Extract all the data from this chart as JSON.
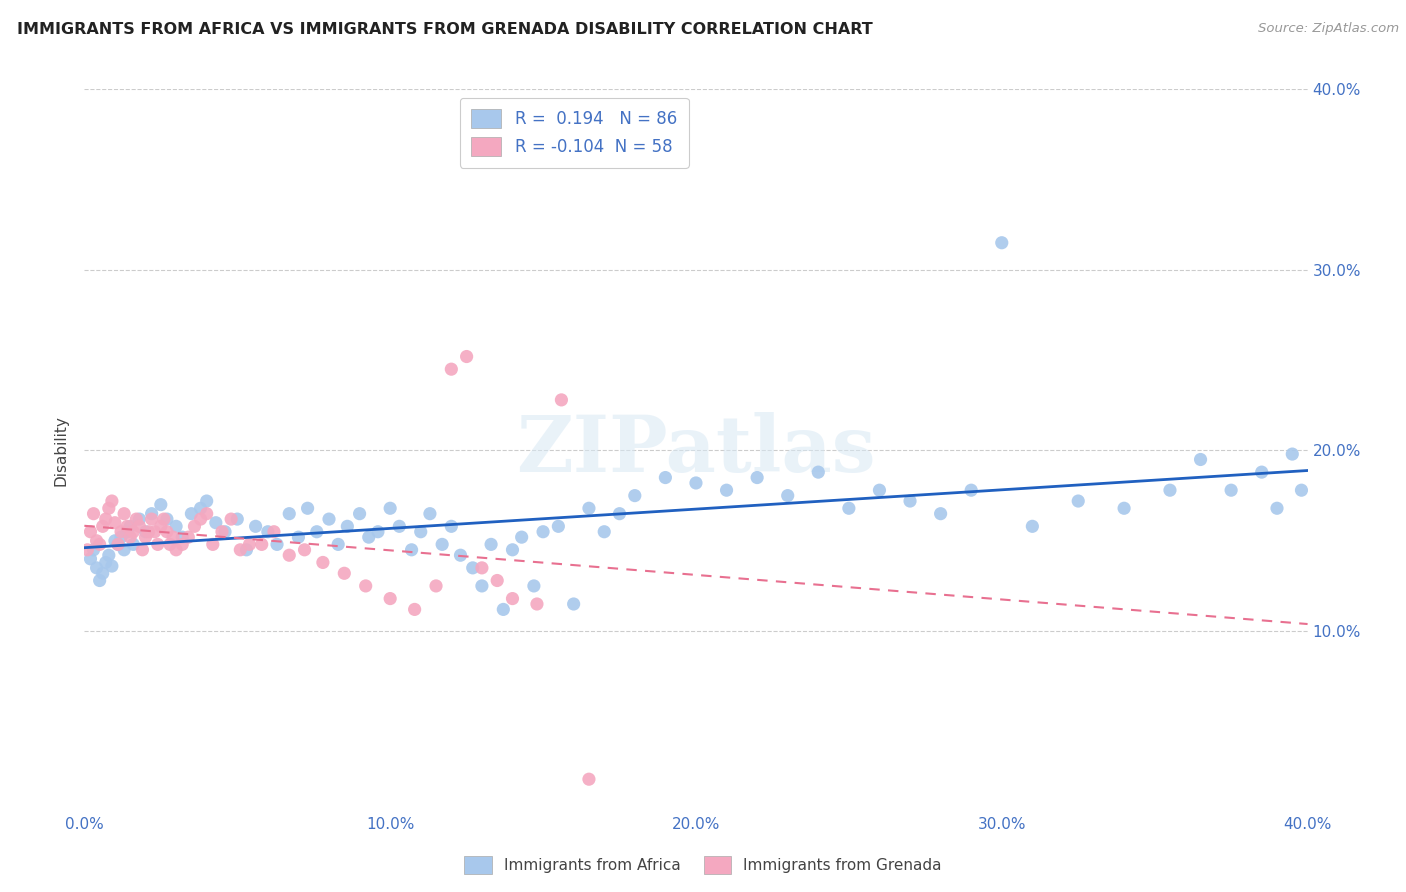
{
  "title": "IMMIGRANTS FROM AFRICA VS IMMIGRANTS FROM GRENADA DISABILITY CORRELATION CHART",
  "source": "Source: ZipAtlas.com",
  "ylabel": "Disability",
  "xlim": [
    0.0,
    0.4
  ],
  "ylim": [
    0.0,
    0.4
  ],
  "xticks": [
    0.0,
    0.1,
    0.2,
    0.3,
    0.4
  ],
  "yticks": [
    0.1,
    0.2,
    0.3,
    0.4
  ],
  "xtick_labels": [
    "0.0%",
    "10.0%",
    "20.0%",
    "30.0%",
    "40.0%"
  ],
  "ytick_labels": [
    "10.0%",
    "20.0%",
    "30.0%",
    "40.0%"
  ],
  "africa_R": 0.194,
  "africa_N": 86,
  "grenada_R": -0.104,
  "grenada_N": 58,
  "africa_color": "#A8C8EC",
  "grenada_color": "#F4A8C0",
  "africa_line_color": "#2060C0",
  "grenada_line_color": "#E87090",
  "watermark": "ZIPatlas",
  "africa_x": [
    0.002,
    0.003,
    0.004,
    0.005,
    0.006,
    0.007,
    0.008,
    0.009,
    0.01,
    0.011,
    0.012,
    0.013,
    0.014,
    0.015,
    0.016,
    0.018,
    0.02,
    0.022,
    0.025,
    0.027,
    0.03,
    0.032,
    0.035,
    0.038,
    0.04,
    0.043,
    0.046,
    0.05,
    0.053,
    0.056,
    0.06,
    0.063,
    0.067,
    0.07,
    0.073,
    0.076,
    0.08,
    0.083,
    0.086,
    0.09,
    0.093,
    0.096,
    0.1,
    0.103,
    0.107,
    0.11,
    0.113,
    0.117,
    0.12,
    0.123,
    0.127,
    0.13,
    0.133,
    0.137,
    0.14,
    0.143,
    0.147,
    0.15,
    0.155,
    0.16,
    0.165,
    0.17,
    0.175,
    0.18,
    0.19,
    0.2,
    0.21,
    0.22,
    0.23,
    0.24,
    0.25,
    0.26,
    0.27,
    0.28,
    0.29,
    0.3,
    0.31,
    0.325,
    0.34,
    0.355,
    0.365,
    0.375,
    0.385,
    0.39,
    0.395,
    0.398
  ],
  "africa_y": [
    0.14,
    0.145,
    0.135,
    0.128,
    0.132,
    0.138,
    0.142,
    0.136,
    0.15,
    0.148,
    0.152,
    0.145,
    0.155,
    0.158,
    0.148,
    0.162,
    0.155,
    0.165,
    0.17,
    0.162,
    0.158,
    0.152,
    0.165,
    0.168,
    0.172,
    0.16,
    0.155,
    0.162,
    0.145,
    0.158,
    0.155,
    0.148,
    0.165,
    0.152,
    0.168,
    0.155,
    0.162,
    0.148,
    0.158,
    0.165,
    0.152,
    0.155,
    0.168,
    0.158,
    0.145,
    0.155,
    0.165,
    0.148,
    0.158,
    0.142,
    0.135,
    0.125,
    0.148,
    0.112,
    0.145,
    0.152,
    0.125,
    0.155,
    0.158,
    0.115,
    0.168,
    0.155,
    0.165,
    0.175,
    0.185,
    0.182,
    0.178,
    0.185,
    0.175,
    0.188,
    0.168,
    0.178,
    0.172,
    0.165,
    0.178,
    0.315,
    0.158,
    0.172,
    0.168,
    0.178,
    0.195,
    0.178,
    0.188,
    0.168,
    0.198,
    0.178
  ],
  "grenada_x": [
    0.001,
    0.002,
    0.003,
    0.004,
    0.005,
    0.006,
    0.007,
    0.008,
    0.009,
    0.01,
    0.011,
    0.012,
    0.013,
    0.014,
    0.015,
    0.016,
    0.017,
    0.018,
    0.019,
    0.02,
    0.021,
    0.022,
    0.023,
    0.024,
    0.025,
    0.026,
    0.027,
    0.028,
    0.029,
    0.03,
    0.032,
    0.034,
    0.036,
    0.038,
    0.04,
    0.042,
    0.045,
    0.048,
    0.051,
    0.054,
    0.058,
    0.062,
    0.067,
    0.072,
    0.078,
    0.085,
    0.092,
    0.1,
    0.108,
    0.115,
    0.12,
    0.125,
    0.13,
    0.135,
    0.14,
    0.148,
    0.156,
    0.165
  ],
  "grenada_y": [
    0.145,
    0.155,
    0.165,
    0.15,
    0.148,
    0.158,
    0.162,
    0.168,
    0.172,
    0.16,
    0.148,
    0.155,
    0.165,
    0.158,
    0.152,
    0.155,
    0.162,
    0.158,
    0.145,
    0.152,
    0.155,
    0.162,
    0.155,
    0.148,
    0.158,
    0.162,
    0.155,
    0.148,
    0.152,
    0.145,
    0.148,
    0.152,
    0.158,
    0.162,
    0.165,
    0.148,
    0.155,
    0.162,
    0.145,
    0.148,
    0.148,
    0.155,
    0.142,
    0.145,
    0.138,
    0.132,
    0.125,
    0.118,
    0.112,
    0.125,
    0.245,
    0.252,
    0.135,
    0.128,
    0.118,
    0.115,
    0.228,
    0.018
  ]
}
